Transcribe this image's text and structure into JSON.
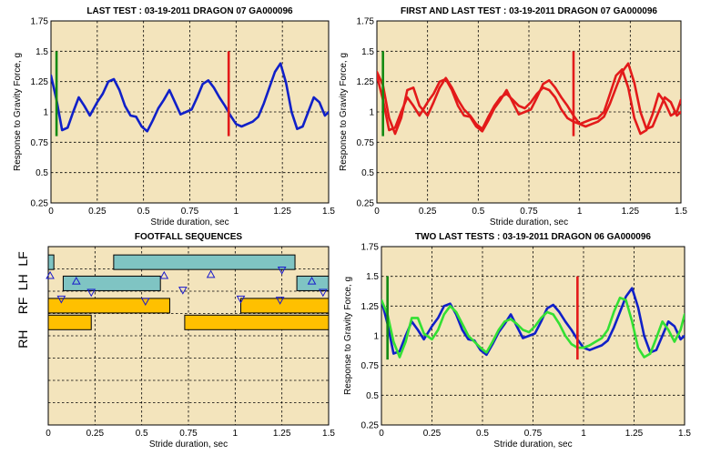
{
  "chart_data": [
    {
      "id": "last_test",
      "type": "line",
      "title": "LAST TEST : 03-19-2011 DRAGON 07 GA000096",
      "xlabel": "Stride duration, sec",
      "ylabel": "Response to Gravity Force, g",
      "xlim": [
        0,
        1.5
      ],
      "ylim": [
        0.25,
        1.75
      ],
      "xticks": [
        0,
        0.25,
        0.5,
        0.75,
        1,
        1.25,
        1.5
      ],
      "xtick_labels": [
        "0",
        "0.25",
        "0.5",
        "0.75",
        "1",
        "1.25",
        "1.5"
      ],
      "yticks": [
        0.25,
        0.5,
        0.75,
        1,
        1.25,
        1.5,
        1.75
      ],
      "ytick_labels": [
        "0.25",
        "0.5",
        "0.75",
        "1",
        "1.25",
        "1.5",
        "1.75"
      ],
      "grid": true,
      "markers": [
        {
          "x": 0.03,
          "y0": 0.8,
          "y1": 1.5,
          "color": "#138a13"
        },
        {
          "x": 0.96,
          "y0": 0.8,
          "y1": 1.5,
          "color": "#e31a1a"
        }
      ],
      "series": [
        {
          "color": "#1020c8",
          "x": [
            0,
            0.03,
            0.06,
            0.09,
            0.12,
            0.15,
            0.18,
            0.21,
            0.25,
            0.28,
            0.31,
            0.34,
            0.37,
            0.4,
            0.43,
            0.46,
            0.49,
            0.52,
            0.55,
            0.58,
            0.61,
            0.64,
            0.67,
            0.7,
            0.73,
            0.76,
            0.79,
            0.82,
            0.85,
            0.88,
            0.91,
            0.94,
            0.97,
            1.0,
            1.03,
            1.06,
            1.09,
            1.12,
            1.15,
            1.18,
            1.21,
            1.24,
            1.27,
            1.3,
            1.33,
            1.36,
            1.39,
            1.42,
            1.45,
            1.48,
            1.5
          ],
          "y": [
            1.3,
            1.1,
            0.85,
            0.87,
            1.0,
            1.12,
            1.05,
            0.97,
            1.08,
            1.15,
            1.25,
            1.27,
            1.18,
            1.05,
            0.97,
            0.96,
            0.88,
            0.84,
            0.93,
            1.03,
            1.1,
            1.18,
            1.08,
            0.98,
            1.0,
            1.02,
            1.12,
            1.23,
            1.26,
            1.2,
            1.12,
            1.05,
            0.97,
            0.9,
            0.88,
            0.9,
            0.92,
            0.96,
            1.07,
            1.2,
            1.33,
            1.4,
            1.24,
            1.0,
            0.86,
            0.88,
            1.0,
            1.12,
            1.08,
            0.97,
            1.0
          ]
        }
      ]
    },
    {
      "id": "first_and_last",
      "type": "line",
      "title": "FIRST AND LAST TEST : 03-19-2011 DRAGON 07 GA000096",
      "xlabel": "Stride duration, sec",
      "ylabel": "Response to Gravity Force, g",
      "xlim": [
        0,
        1.5
      ],
      "ylim": [
        0.25,
        1.75
      ],
      "xticks": [
        0,
        0.25,
        0.5,
        0.75,
        1,
        1.25,
        1.5
      ],
      "xtick_labels": [
        "0",
        "0.25",
        "0.5",
        "0.75",
        "1",
        "1.25",
        "1.5"
      ],
      "yticks": [
        0.25,
        0.5,
        0.75,
        1,
        1.25,
        1.5,
        1.75
      ],
      "ytick_labels": [
        "0.25",
        "0.5",
        "0.75",
        "1",
        "1.25",
        "1.5",
        "1.75"
      ],
      "grid": true,
      "markers": [
        {
          "x": 0.03,
          "y0": 0.8,
          "y1": 1.5,
          "color": "#138a13"
        },
        {
          "x": 0.97,
          "y0": 0.8,
          "y1": 1.5,
          "color": "#e31a1a"
        }
      ],
      "series": [
        {
          "color": "#e31a1a",
          "x": [
            0,
            0.03,
            0.06,
            0.09,
            0.12,
            0.15,
            0.18,
            0.21,
            0.25,
            0.28,
            0.31,
            0.34,
            0.37,
            0.4,
            0.43,
            0.46,
            0.49,
            0.52,
            0.55,
            0.58,
            0.61,
            0.64,
            0.67,
            0.7,
            0.73,
            0.76,
            0.79,
            0.82,
            0.85,
            0.88,
            0.91,
            0.94,
            0.97,
            1.0,
            1.03,
            1.06,
            1.09,
            1.12,
            1.15,
            1.18,
            1.21,
            1.24,
            1.27,
            1.3,
            1.33,
            1.36,
            1.39,
            1.42,
            1.45,
            1.48,
            1.5
          ],
          "y": [
            1.3,
            1.1,
            0.85,
            0.87,
            1.0,
            1.12,
            1.05,
            0.97,
            1.08,
            1.15,
            1.25,
            1.27,
            1.18,
            1.05,
            0.97,
            0.96,
            0.88,
            0.84,
            0.93,
            1.03,
            1.1,
            1.18,
            1.08,
            0.98,
            1.0,
            1.02,
            1.12,
            1.23,
            1.26,
            1.2,
            1.12,
            1.05,
            0.97,
            0.9,
            0.88,
            0.9,
            0.92,
            0.96,
            1.07,
            1.2,
            1.33,
            1.4,
            1.24,
            1.0,
            0.86,
            0.88,
            1.0,
            1.12,
            1.08,
            0.97,
            1.0
          ]
        },
        {
          "color": "#e31a1a",
          "x": [
            0,
            0.03,
            0.06,
            0.09,
            0.12,
            0.15,
            0.18,
            0.21,
            0.25,
            0.28,
            0.31,
            0.34,
            0.37,
            0.4,
            0.43,
            0.46,
            0.49,
            0.52,
            0.55,
            0.58,
            0.61,
            0.64,
            0.67,
            0.7,
            0.73,
            0.76,
            0.79,
            0.82,
            0.85,
            0.88,
            0.91,
            0.94,
            0.97,
            1.0,
            1.03,
            1.06,
            1.09,
            1.12,
            1.15,
            1.18,
            1.21,
            1.24,
            1.27,
            1.3,
            1.33,
            1.36,
            1.39,
            1.42,
            1.45,
            1.48,
            1.5
          ],
          "y": [
            1.33,
            1.22,
            0.95,
            0.82,
            0.95,
            1.18,
            1.2,
            1.05,
            0.97,
            1.08,
            1.2,
            1.28,
            1.2,
            1.1,
            1.02,
            0.97,
            0.9,
            0.86,
            0.96,
            1.05,
            1.12,
            1.15,
            1.1,
            1.05,
            1.03,
            1.08,
            1.15,
            1.2,
            1.18,
            1.12,
            1.02,
            0.95,
            0.92,
            0.9,
            0.92,
            0.94,
            0.95,
            1.0,
            1.15,
            1.3,
            1.35,
            1.2,
            0.95,
            0.82,
            0.85,
            0.98,
            1.15,
            1.08,
            0.97,
            1.0,
            1.1
          ]
        }
      ]
    },
    {
      "id": "footfall",
      "type": "footfall",
      "title": "FOOTFALL SEQUENCES",
      "xlabel": "Stride duration, sec",
      "xlim": [
        0,
        1.5
      ],
      "xticks": [
        0,
        0.25,
        0.5,
        0.75,
        1,
        1.25,
        1.5
      ],
      "xtick_labels": [
        "0",
        "0.25",
        "0.5",
        "0.75",
        "1",
        "1.25",
        "1.5"
      ],
      "grid": true,
      "lanes": [
        "LF",
        "LH",
        "RF",
        "RH"
      ],
      "bars": [
        {
          "lane": 0,
          "x0": 0.0,
          "x1": 0.03,
          "color": "#7fc4c3"
        },
        {
          "lane": 0,
          "x0": 0.35,
          "x1": 1.32,
          "color": "#7fc4c3"
        },
        {
          "lane": 1,
          "x0": 0.08,
          "x1": 0.6,
          "color": "#7fc4c3"
        },
        {
          "lane": 1,
          "x0": 1.33,
          "x1": 1.5,
          "color": "#7fc4c3"
        },
        {
          "lane": 2,
          "x0": 0.0,
          "x1": 0.65,
          "color": "#ffc000"
        },
        {
          "lane": 2,
          "x0": 1.03,
          "x1": 1.5,
          "color": "#ffc000"
        },
        {
          "lane": 3,
          "x0": 0.0,
          "x1": 0.23,
          "color": "#ffc000"
        },
        {
          "lane": 3,
          "x0": 0.73,
          "x1": 1.5,
          "color": "#ffc000"
        }
      ],
      "triangles": [
        {
          "x": 0.01,
          "y": 1.3,
          "dir": "up"
        },
        {
          "x": 0.62,
          "y": 1.3,
          "dir": "up"
        },
        {
          "x": 0.87,
          "y": 1.25,
          "dir": "up"
        },
        {
          "x": 1.25,
          "y": 1.05,
          "dir": "down"
        },
        {
          "x": 0.15,
          "y": 1.55,
          "dir": "up"
        },
        {
          "x": 1.41,
          "y": 1.55,
          "dir": "up"
        },
        {
          "x": 0.23,
          "y": 2.05,
          "dir": "down"
        },
        {
          "x": 0.72,
          "y": 1.95,
          "dir": "down"
        },
        {
          "x": 1.47,
          "y": 2.05,
          "dir": "down"
        },
        {
          "x": 0.07,
          "y": 2.35,
          "dir": "down"
        },
        {
          "x": 0.52,
          "y": 2.45,
          "dir": "down"
        },
        {
          "x": 1.03,
          "y": 2.35,
          "dir": "down"
        },
        {
          "x": 1.24,
          "y": 2.4,
          "dir": "down"
        }
      ]
    },
    {
      "id": "two_last",
      "type": "line",
      "title": "TWO LAST TESTS : 03-19-2011 DRAGON 06 GA000096",
      "xlabel": "Stride duration, sec",
      "ylabel": "Response to Gravity Force, g",
      "xlim": [
        0,
        1.5
      ],
      "ylim": [
        0.25,
        1.75
      ],
      "xticks": [
        0,
        0.25,
        0.5,
        0.75,
        1,
        1.25,
        1.5
      ],
      "xtick_labels": [
        "0",
        "0.25",
        "0.5",
        "0.75",
        "1",
        "1.25",
        "1.5"
      ],
      "yticks": [
        0.25,
        0.5,
        0.75,
        1,
        1.25,
        1.5,
        1.75
      ],
      "ytick_labels": [
        "0.25",
        "0.5",
        "0.75",
        "1",
        "1.25",
        "1.5",
        "1.75"
      ],
      "grid": true,
      "markers": [
        {
          "x": 0.03,
          "y0": 0.8,
          "y1": 1.5,
          "color": "#138a13"
        },
        {
          "x": 0.97,
          "y0": 0.8,
          "y1": 1.5,
          "color": "#e31a1a"
        }
      ],
      "series": [
        {
          "color": "#1020c8",
          "x": [
            0,
            0.03,
            0.06,
            0.09,
            0.12,
            0.15,
            0.18,
            0.21,
            0.25,
            0.28,
            0.31,
            0.34,
            0.37,
            0.4,
            0.43,
            0.46,
            0.49,
            0.52,
            0.55,
            0.58,
            0.61,
            0.64,
            0.67,
            0.7,
            0.73,
            0.76,
            0.79,
            0.82,
            0.85,
            0.88,
            0.91,
            0.94,
            0.97,
            1.0,
            1.03,
            1.06,
            1.09,
            1.12,
            1.15,
            1.18,
            1.21,
            1.24,
            1.27,
            1.3,
            1.33,
            1.36,
            1.39,
            1.42,
            1.45,
            1.48,
            1.5
          ],
          "y": [
            1.3,
            1.1,
            0.85,
            0.87,
            1.0,
            1.12,
            1.05,
            0.97,
            1.08,
            1.15,
            1.25,
            1.27,
            1.18,
            1.05,
            0.97,
            0.96,
            0.88,
            0.84,
            0.93,
            1.03,
            1.1,
            1.18,
            1.08,
            0.98,
            1.0,
            1.02,
            1.12,
            1.23,
            1.26,
            1.2,
            1.12,
            1.05,
            0.97,
            0.9,
            0.88,
            0.9,
            0.92,
            0.96,
            1.07,
            1.2,
            1.33,
            1.4,
            1.24,
            1.0,
            0.86,
            0.88,
            1.0,
            1.12,
            1.08,
            0.97,
            1.0
          ]
        },
        {
          "color": "#33e033",
          "x": [
            0,
            0.03,
            0.06,
            0.09,
            0.12,
            0.15,
            0.18,
            0.21,
            0.25,
            0.28,
            0.31,
            0.34,
            0.37,
            0.4,
            0.43,
            0.46,
            0.49,
            0.52,
            0.55,
            0.58,
            0.61,
            0.64,
            0.67,
            0.7,
            0.73,
            0.76,
            0.79,
            0.82,
            0.85,
            0.88,
            0.91,
            0.94,
            0.97,
            1.0,
            1.03,
            1.06,
            1.09,
            1.12,
            1.15,
            1.18,
            1.21,
            1.24,
            1.27,
            1.3,
            1.33,
            1.36,
            1.39,
            1.42,
            1.45,
            1.48,
            1.5
          ],
          "y": [
            1.3,
            1.18,
            0.95,
            0.82,
            0.95,
            1.15,
            1.15,
            1.02,
            0.97,
            1.05,
            1.18,
            1.25,
            1.2,
            1.1,
            1.0,
            0.95,
            0.9,
            0.86,
            0.95,
            1.05,
            1.12,
            1.14,
            1.1,
            1.05,
            1.03,
            1.08,
            1.15,
            1.2,
            1.18,
            1.1,
            1.0,
            0.93,
            0.9,
            0.9,
            0.92,
            0.95,
            0.98,
            1.05,
            1.2,
            1.32,
            1.3,
            1.12,
            0.9,
            0.82,
            0.85,
            0.98,
            1.12,
            1.05,
            0.95,
            1.05,
            1.18
          ]
        }
      ]
    }
  ]
}
